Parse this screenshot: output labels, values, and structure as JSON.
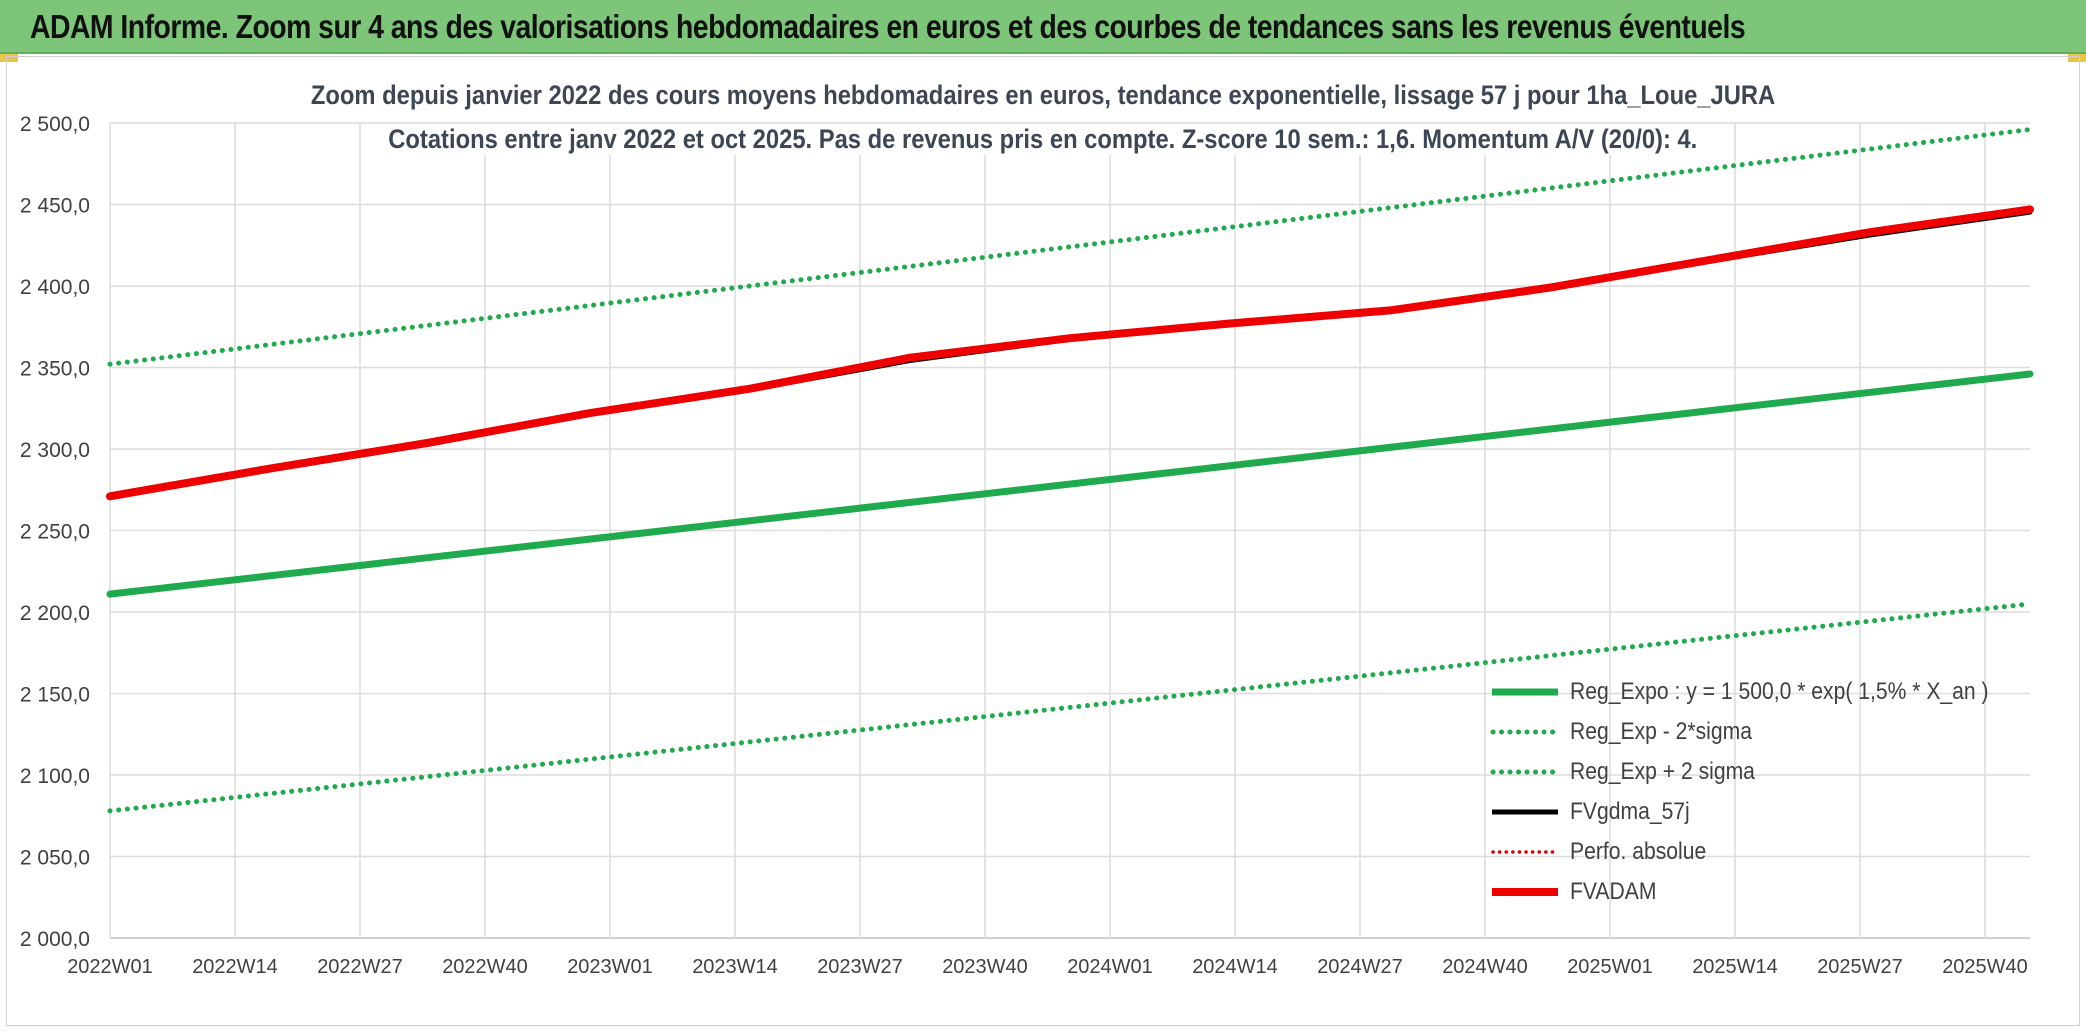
{
  "header": {
    "title": "ADAM Informe. Zoom sur 4 ans des valorisations hebdomadaires en euros et des courbes de tendances sans les revenus éventuels"
  },
  "chart_data": {
    "type": "line",
    "title": "Zoom depuis janvier 2022 des cours moyens hebdomadaires en euros, tendance exponentielle, lissage 57 j pour 1ha_Loue_JURA",
    "subtitle": "Cotations entre janv 2022 et oct 2025. Pas de revenus pris en compte. Z-score 10 sem.: 1,6. Momentum A/V (20/0): 4.",
    "xlabel": "",
    "ylabel": "",
    "ylim": [
      2000,
      2500
    ],
    "yticks": [
      "2 000,0",
      "2 050,0",
      "2 100,0",
      "2 150,0",
      "2 200,0",
      "2 250,0",
      "2 300,0",
      "2 350,0",
      "2 400,0",
      "2 450,0",
      "2 500,0"
    ],
    "ytick_values": [
      2000,
      2050,
      2100,
      2150,
      2200,
      2250,
      2300,
      2350,
      2400,
      2450,
      2500
    ],
    "xticks": [
      "2022W01",
      "2022W14",
      "2022W27",
      "2022W40",
      "2023W01",
      "2023W14",
      "2023W27",
      "2023W40",
      "2024W01",
      "2024W14",
      "2024W27",
      "2024W40",
      "2025W01",
      "2025W14",
      "2025W27",
      "2025W40"
    ],
    "x_index_range": [
      0,
      204
    ],
    "series": [
      {
        "name": "Reg_Expo : y = 1 500,0 * exp( 1,5% *  X_an )",
        "color": "#1faa4e",
        "style": "solid-thick",
        "x": [
          0,
          204
        ],
        "values": [
          2211,
          2346
        ]
      },
      {
        "name": "Reg_Exp - 2*sigma",
        "color": "#1faa4e",
        "style": "dotted",
        "x": [
          0,
          204
        ],
        "values": [
          2078,
          2205
        ]
      },
      {
        "name": "Reg_Exp + 2 sigma",
        "color": "#1faa4e",
        "style": "dotted",
        "x": [
          0,
          204
        ],
        "values": [
          2352,
          2496
        ]
      },
      {
        "name": "FVgdma_57j",
        "color": "#000000",
        "style": "solid",
        "x": [
          0,
          17,
          34,
          51,
          68,
          85,
          102,
          119,
          136,
          153,
          170,
          187,
          204
        ],
        "values": [
          2271,
          2288,
          2303,
          2321,
          2336,
          2354,
          2367,
          2376,
          2384,
          2398,
          2415,
          2431,
          2445
        ]
      },
      {
        "name": "Perfo. absolue",
        "color": "#e00000",
        "style": "dotted",
        "x": [],
        "values": []
      },
      {
        "name": "FVADAM",
        "color": "#ee0000",
        "style": "solid-thick",
        "x": [
          0,
          17,
          34,
          51,
          68,
          85,
          102,
          119,
          136,
          153,
          170,
          187,
          204
        ],
        "values": [
          2271,
          2288,
          2304,
          2322,
          2337,
          2356,
          2368,
          2377,
          2385,
          2399,
          2416,
          2433,
          2447
        ]
      }
    ],
    "grid": true,
    "legend_position": "bottom-right"
  }
}
